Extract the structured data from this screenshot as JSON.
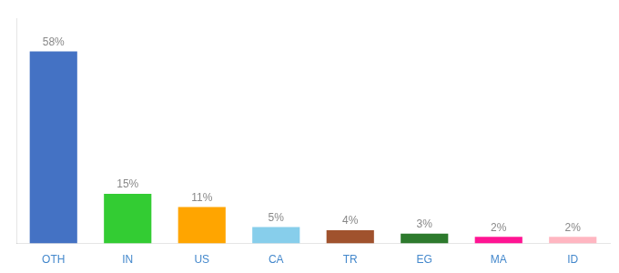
{
  "chart_data": {
    "type": "bar",
    "categories": [
      "OTH",
      "IN",
      "US",
      "CA",
      "TR",
      "EG",
      "MA",
      "ID"
    ],
    "values": [
      58,
      15,
      11,
      5,
      4,
      3,
      2,
      2
    ],
    "value_labels": [
      "58%",
      "15%",
      "11%",
      "5%",
      "4%",
      "3%",
      "2%",
      "2%"
    ],
    "colors": [
      "#4472C4",
      "#33CC33",
      "#FFA500",
      "#87CEEB",
      "#A0522D",
      "#2D7A2D",
      "#FF1493",
      "#FFB6C1"
    ],
    "ylim": [
      0,
      68
    ],
    "data_labels": true,
    "tick_labels": "x",
    "grid": false
  }
}
